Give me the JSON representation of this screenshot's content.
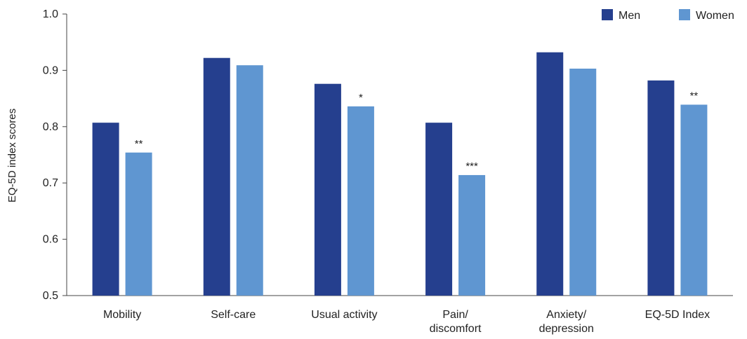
{
  "chart_data": {
    "type": "bar",
    "title": "",
    "xlabel": "",
    "ylabel": "EQ-5D index scores",
    "ylim": [
      0.5,
      1.0
    ],
    "yticks": [
      "0.5",
      "0.6",
      "0.7",
      "0.8",
      "0.9",
      "1.0"
    ],
    "grid": false,
    "legend_position": "top-right",
    "categories": [
      [
        "Mobility"
      ],
      [
        "Self-care"
      ],
      [
        "Usual activity"
      ],
      [
        "Pain/",
        "discomfort"
      ],
      [
        "Anxiety/",
        "depression"
      ],
      [
        "EQ-5D Index"
      ]
    ],
    "series": [
      {
        "name": "Men",
        "color": "#253f8e",
        "values": [
          0.807,
          0.922,
          0.876,
          0.807,
          0.932,
          0.882
        ]
      },
      {
        "name": "Women",
        "color": "#5f96d1",
        "values": [
          0.754,
          0.909,
          0.836,
          0.714,
          0.903,
          0.839
        ]
      }
    ],
    "annotations": [
      "**",
      "",
      "*",
      "***",
      "",
      "**"
    ]
  }
}
